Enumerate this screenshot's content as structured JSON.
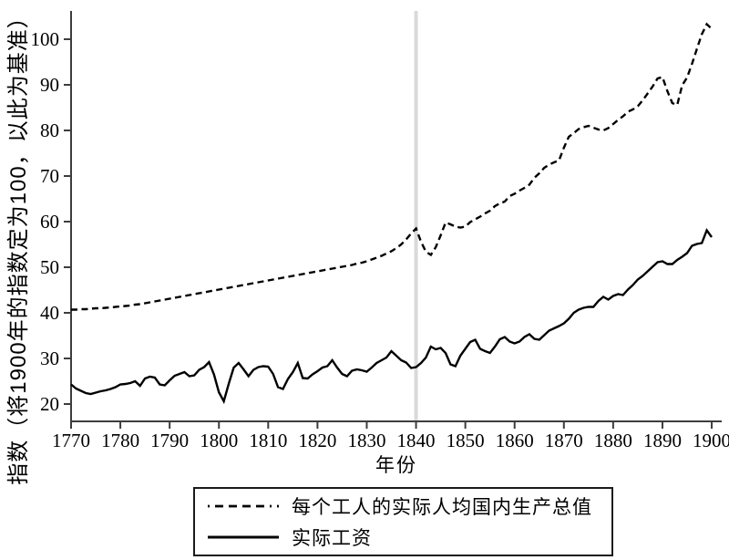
{
  "figure": {
    "y_axis_label": "指数（将1900年的指数定为100，以此为基准）",
    "x_axis_label": "年份",
    "background_color": "#ffffff",
    "axis_color": "#3d3d3d",
    "text_color": "#000000",
    "reference_line_color": "#d9d9d9"
  },
  "chart_data": {
    "type": "line",
    "title": "",
    "xlabel": "年份",
    "ylabel": "指数（将1900年的指数定为100，以此为基准）",
    "xlim": [
      1768,
      1902
    ],
    "ylim": [
      16,
      106
    ],
    "x_ticks": [
      1770,
      1780,
      1790,
      1800,
      1810,
      1820,
      1830,
      1840,
      1850,
      1860,
      1870,
      1880,
      1890,
      1900
    ],
    "y_ticks": [
      20,
      30,
      40,
      50,
      60,
      70,
      80,
      90,
      100
    ],
    "grid": false,
    "legend_position": "bottom-center-boxed",
    "vline": {
      "x": 1840,
      "color": "#d9d9d9",
      "width": 4
    },
    "x_start": 1770,
    "x_step": 1,
    "series": [
      {
        "name": "每个工人的实际人均国内生产总值",
        "style": "dashed",
        "color": "#000000",
        "values": [
          40.7,
          40.7,
          40.8,
          40.8,
          40.9,
          41.0,
          41.0,
          41.1,
          41.2,
          41.3,
          41.4,
          41.5,
          41.6,
          41.8,
          41.9,
          42.1,
          42.3,
          42.5,
          42.7,
          42.9,
          43.1,
          43.3,
          43.5,
          43.7,
          43.9,
          44.1,
          44.3,
          44.5,
          44.7,
          44.9,
          45.1,
          45.3,
          45.5,
          45.7,
          45.9,
          46.1,
          46.3,
          46.5,
          46.7,
          46.9,
          47.1,
          47.3,
          47.5,
          47.7,
          47.9,
          48.1,
          48.3,
          48.5,
          48.7,
          48.9,
          49.1,
          49.3,
          49.5,
          49.7,
          49.9,
          50.1,
          50.3,
          50.5,
          50.8,
          51.0,
          51.3,
          51.7,
          52.1,
          52.5,
          53.0,
          53.5,
          54.2,
          55.0,
          56.1,
          57.4,
          58.5,
          55.6,
          53.4,
          52.7,
          54.4,
          57.0,
          59.8,
          59.4,
          58.9,
          58.7,
          58.9,
          59.9,
          60.5,
          61.1,
          61.8,
          62.4,
          63.4,
          64.0,
          64.4,
          65.6,
          66.1,
          66.8,
          67.4,
          68.1,
          69.6,
          70.6,
          71.8,
          72.5,
          73.0,
          73.4,
          76.2,
          78.6,
          79.4,
          80.3,
          80.7,
          81.0,
          80.6,
          80.2,
          80.0,
          80.5,
          81.4,
          82.3,
          83.1,
          84.1,
          84.6,
          85.3,
          86.6,
          88.1,
          89.6,
          91.4,
          91.7,
          88.6,
          86.0,
          85.6,
          89.9,
          91.6,
          94.6,
          97.9,
          101.1,
          103.3,
          102.3
        ]
      },
      {
        "name": "实际工资",
        "style": "solid",
        "color": "#000000",
        "values": [
          24.3,
          23.4,
          22.9,
          22.4,
          22.2,
          22.5,
          22.8,
          23.0,
          23.3,
          23.7,
          24.3,
          24.4,
          24.6,
          25.0,
          24.0,
          25.6,
          26.0,
          25.8,
          24.3,
          24.1,
          25.2,
          26.2,
          26.6,
          27.0,
          26.1,
          26.3,
          27.5,
          28.1,
          29.2,
          26.5,
          22.6,
          20.6,
          24.5,
          28.0,
          29.0,
          27.6,
          26.1,
          27.5,
          28.1,
          28.3,
          28.2,
          26.6,
          23.7,
          23.3,
          25.5,
          27.0,
          29.0,
          25.7,
          25.6,
          26.5,
          27.2,
          28.0,
          28.3,
          29.6,
          28.0,
          26.6,
          26.1,
          27.3,
          27.6,
          27.4,
          27.1,
          28.0,
          29.0,
          29.6,
          30.2,
          31.6,
          30.6,
          29.6,
          29.1,
          27.9,
          28.1,
          29.0,
          30.2,
          32.6,
          32.0,
          32.3,
          31.2,
          28.7,
          28.3,
          30.6,
          32.1,
          33.6,
          34.1,
          32.1,
          31.6,
          31.2,
          32.6,
          34.2,
          34.7,
          33.7,
          33.3,
          33.7,
          34.7,
          35.3,
          34.3,
          34.1,
          35.1,
          36.1,
          36.6,
          37.1,
          37.7,
          38.7,
          40.0,
          40.7,
          41.1,
          41.3,
          41.3,
          42.6,
          43.5,
          42.9,
          43.7,
          44.1,
          43.9,
          45.1,
          46.1,
          47.3,
          48.1,
          49.1,
          50.1,
          51.1,
          51.3,
          50.7,
          50.7,
          51.6,
          52.3,
          53.1,
          54.7,
          55.1,
          55.3,
          58.1,
          56.6
        ]
      }
    ]
  }
}
